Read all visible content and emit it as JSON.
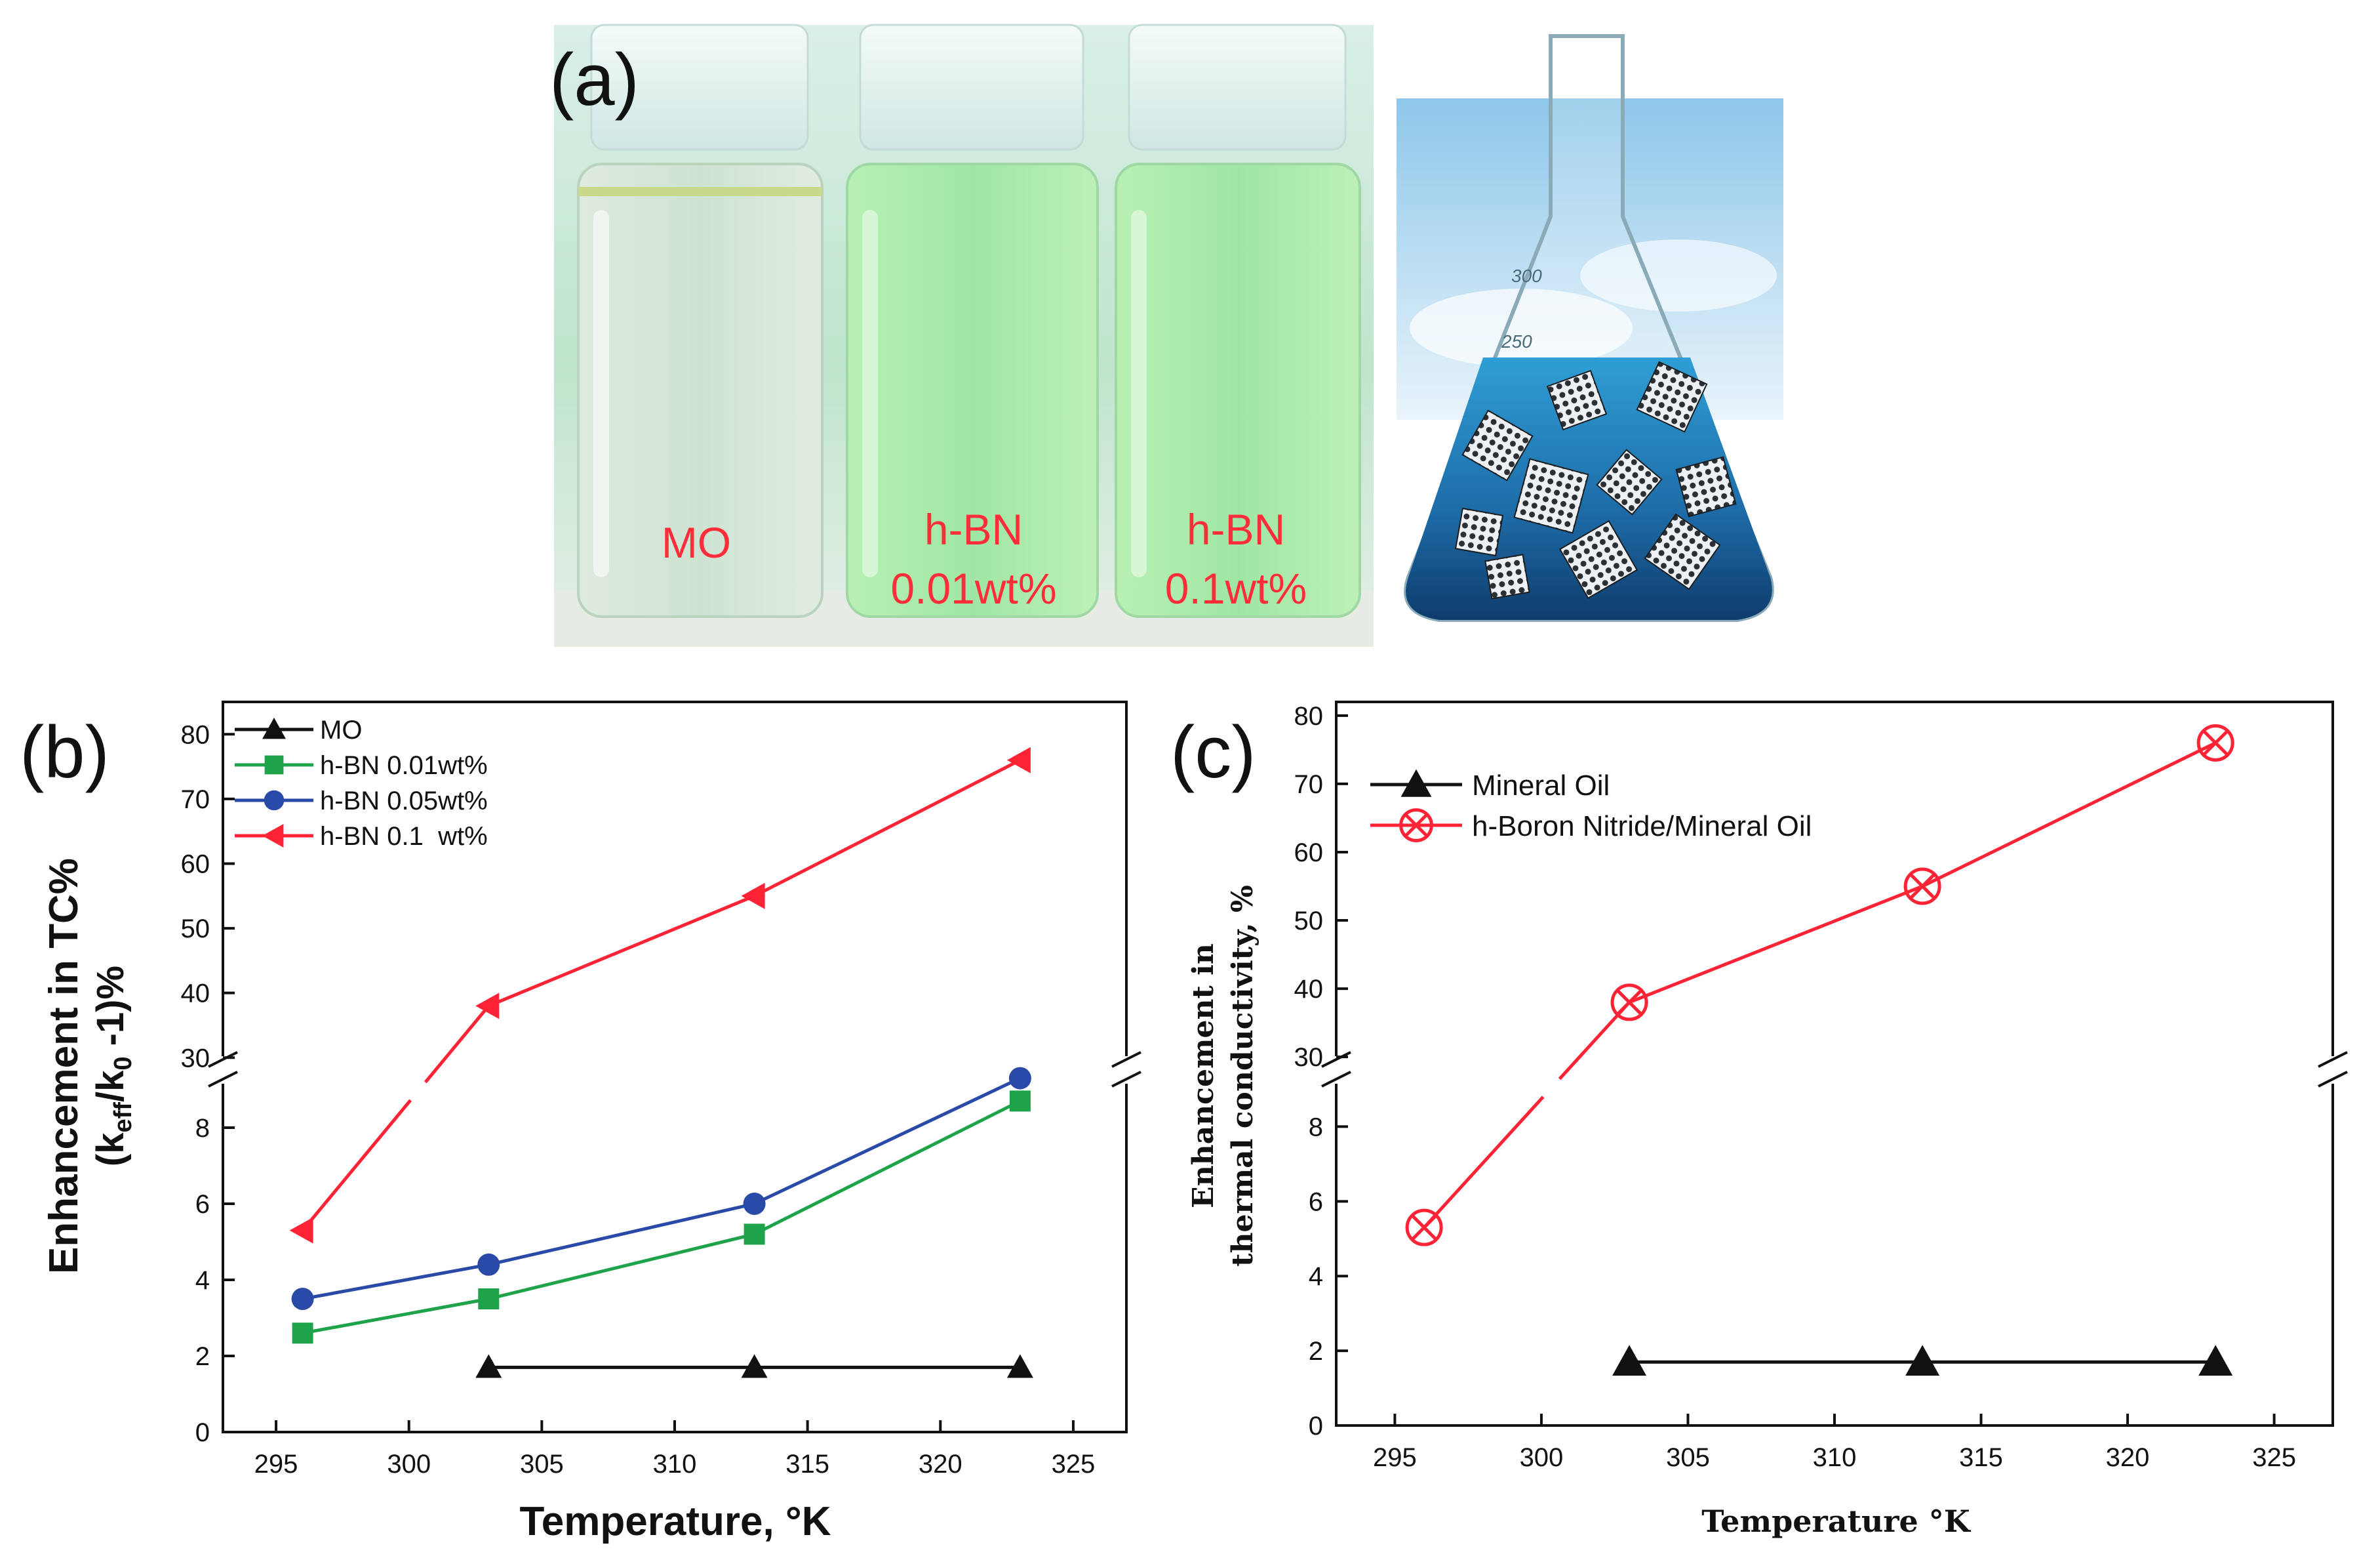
{
  "panel_a": {
    "label": "(a)",
    "vials": [
      {
        "line1": "MO",
        "line2": ""
      },
      {
        "line1": "h-BN",
        "line2": "0.01wt%"
      },
      {
        "line1": "h-BN",
        "line2": "0.1wt%"
      }
    ],
    "flask_marks": [
      "300",
      "250"
    ]
  },
  "chart_data": [
    {
      "panel": "(b)",
      "type": "line",
      "xlabel": "Temperature, °K",
      "ylabel_line1": "Enhancement in TC%",
      "ylabel_line2": "(keff/k0 -1)%",
      "xlim": [
        293,
        327
      ],
      "x_ticks": [
        "295",
        "300",
        "305",
        "310",
        "315",
        "320",
        "325"
      ],
      "y_ticks_lower": [
        "0",
        "2",
        "4",
        "6",
        "8"
      ],
      "y_ticks_upper": [
        "30",
        "40",
        "50",
        "60",
        "70",
        "80"
      ],
      "axis_break": {
        "lower_range": [
          0,
          9.5
        ],
        "upper_range": [
          28,
          85
        ]
      },
      "legend_position": "top-left",
      "series": [
        {
          "name": "MO",
          "color": "#111111",
          "marker": "triangle-up",
          "x": [
            303,
            313,
            323
          ],
          "y": [
            1.7,
            1.7,
            1.7
          ]
        },
        {
          "name": "h-BN 0.01wt%",
          "color": "#1fa34a",
          "marker": "square",
          "x": [
            296,
            303,
            313,
            323
          ],
          "y": [
            2.6,
            3.5,
            5.2,
            8.7
          ]
        },
        {
          "name": "h-BN 0.05wt%",
          "color": "#2a4aa8",
          "marker": "circle",
          "x": [
            296,
            303,
            313,
            323
          ],
          "y": [
            3.5,
            4.4,
            6.0,
            9.3
          ]
        },
        {
          "name": "h-BN 0.1  wt%",
          "color": "#ff2336",
          "marker": "triangle-left",
          "x": [
            296,
            303,
            313,
            323
          ],
          "y": [
            5.3,
            38,
            55,
            76
          ]
        }
      ]
    },
    {
      "panel": "(c)",
      "type": "line",
      "xlabel": "Temperature °K",
      "ylabel_line1": "Enhancement in",
      "ylabel_line2": "thermal conductivity, %",
      "xlim": [
        293,
        327
      ],
      "x_ticks": [
        "295",
        "300",
        "305",
        "310",
        "315",
        "320",
        "325"
      ],
      "y_ticks_lower": [
        "0",
        "2",
        "4",
        "6",
        "8"
      ],
      "y_ticks_upper": [
        "30",
        "40",
        "50",
        "60",
        "70",
        "80"
      ],
      "axis_break": {
        "lower_range": [
          0,
          9.5
        ],
        "upper_range": [
          28,
          82
        ]
      },
      "legend_position": "top-left",
      "series": [
        {
          "name": "Mineral Oil",
          "color": "#111111",
          "marker": "triangle-up",
          "x": [
            303,
            313,
            323
          ],
          "y": [
            1.7,
            1.7,
            1.7
          ]
        },
        {
          "name": "h-Boron Nitride/Mineral Oil",
          "color": "#ff2336",
          "marker": "circle-x",
          "x": [
            296,
            303,
            313,
            323
          ],
          "y": [
            5.3,
            38,
            55,
            76
          ]
        }
      ]
    }
  ]
}
